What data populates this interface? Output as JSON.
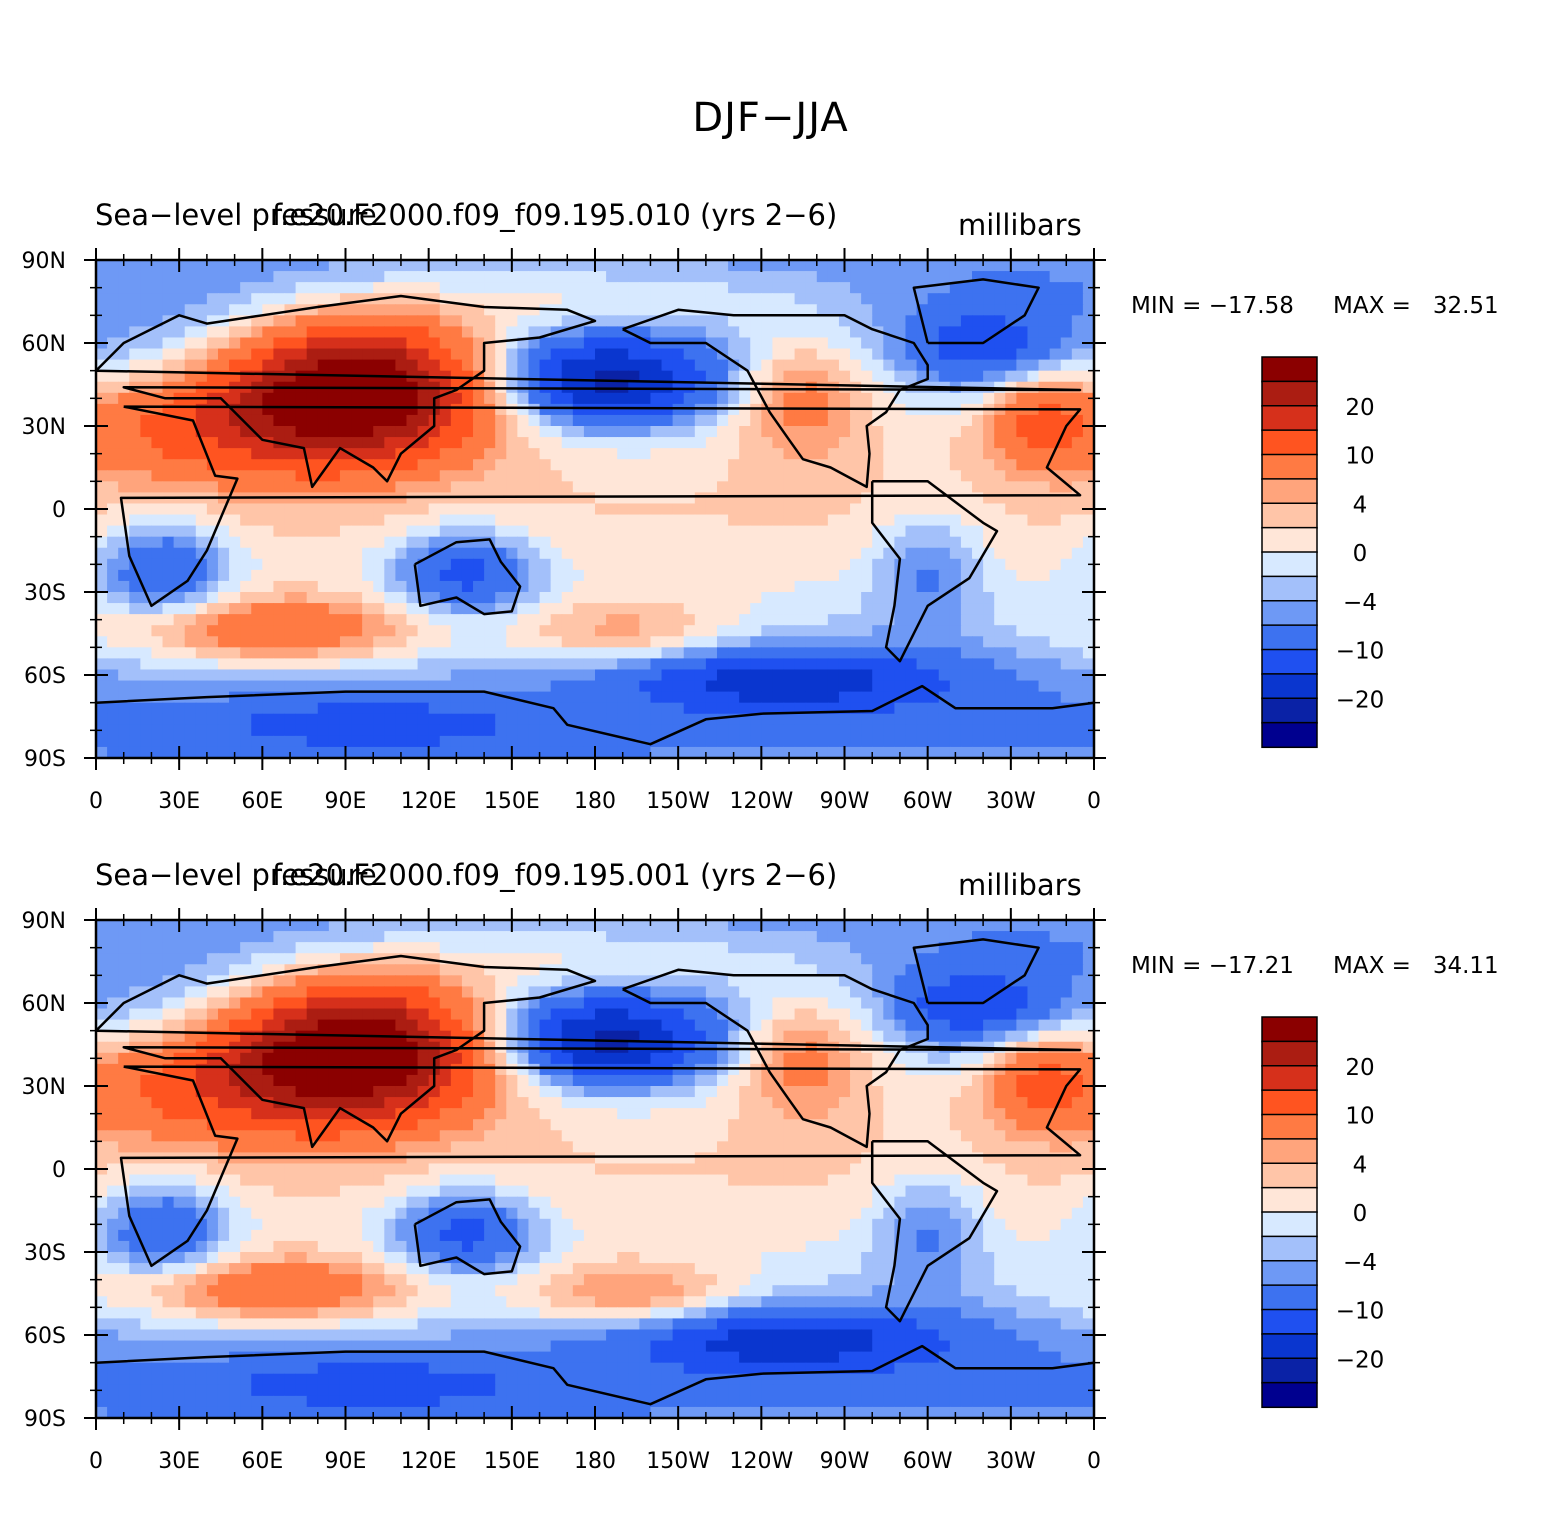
{
  "title": "DJF−JJA",
  "chart_data": [
    {
      "type": "heatmap",
      "variable": "Sea−level pressure",
      "case": "f.e20.F2000.f09_f09.195.010 (yrs 2−6)",
      "units": "millibars",
      "stats_min_label": "MIN = −17.58",
      "stats_max_label": "MAX =   32.51",
      "min": -17.58,
      "max": 32.51,
      "x_ticks": [
        "0",
        "30E",
        "60E",
        "90E",
        "120E",
        "150E",
        "180",
        "150W",
        "120W",
        "90W",
        "60W",
        "30W",
        "0"
      ],
      "y_ticks": [
        "90N",
        "60N",
        "30N",
        "0",
        "30S",
        "60S",
        "90S"
      ],
      "xlim": [
        0,
        360
      ],
      "ylim": [
        -90,
        90
      ],
      "colorbar_labels": [
        "20",
        "10",
        "4",
        "0",
        "−4",
        "−10",
        "−20"
      ],
      "colorbar_levels": [
        -25,
        -20,
        -15,
        -10,
        -6,
        -4,
        -2,
        0,
        2,
        4,
        6,
        10,
        15,
        20,
        25
      ]
    },
    {
      "type": "heatmap",
      "variable": "Sea−level pressure",
      "case": "f.e20.F2000.f09_f09.195.001 (yrs 2−6)",
      "units": "millibars",
      "stats_min_label": "MIN = −17.21",
      "stats_max_label": "MAX =   34.11",
      "min": -17.21,
      "max": 34.11,
      "x_ticks": [
        "0",
        "30E",
        "60E",
        "90E",
        "120E",
        "150E",
        "180",
        "150W",
        "120W",
        "90W",
        "60W",
        "30W",
        "0"
      ],
      "y_ticks": [
        "90N",
        "60N",
        "30N",
        "0",
        "30S",
        "60S",
        "90S"
      ],
      "xlim": [
        0,
        360
      ],
      "ylim": [
        -90,
        90
      ],
      "colorbar_labels": [
        "20",
        "10",
        "4",
        "0",
        "−4",
        "−10",
        "−20"
      ],
      "colorbar_levels": [
        -25,
        -20,
        -15,
        -10,
        -6,
        -4,
        -2,
        0,
        2,
        4,
        6,
        10,
        15,
        20,
        25
      ]
    }
  ],
  "colors": {
    "palette": [
      "#00008f",
      "#0a22a6",
      "#0a36cf",
      "#1f50f0",
      "#3d72f0",
      "#6e99f5",
      "#a3c0fa",
      "#d7e9ff",
      "#ffe6d8",
      "#ffc5a8",
      "#ffa47c",
      "#ff7a43",
      "#ff5420",
      "#d6301b",
      "#ab1d12",
      "#8b0000"
    ]
  }
}
